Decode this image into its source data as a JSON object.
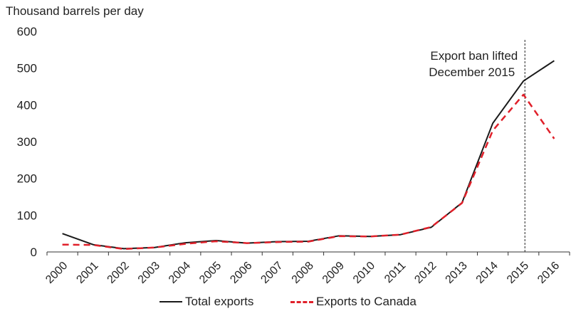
{
  "chart_data": {
    "type": "line",
    "title": "",
    "ylabel": "Thousand barrels per day",
    "xlabel": "",
    "ylim": [
      0,
      600
    ],
    "yticks": [
      0,
      100,
      200,
      300,
      400,
      500,
      600
    ],
    "categories": [
      "2000",
      "2001",
      "2002",
      "2003",
      "2004",
      "2005",
      "2006",
      "2007",
      "2008",
      "2009",
      "2010",
      "2011",
      "2012",
      "2013",
      "2014",
      "2015",
      "2016"
    ],
    "series": [
      {
        "name": "Total exports",
        "color": "#1a1a1a",
        "style": "solid",
        "values": [
          50,
          20,
          9,
          12,
          25,
          31,
          24,
          28,
          29,
          44,
          42,
          47,
          67,
          134,
          350,
          465,
          520
        ]
      },
      {
        "name": "Exports to Canada",
        "color": "#e0202a",
        "style": "dashed",
        "values": [
          20,
          19,
          8,
          12,
          22,
          29,
          24,
          27,
          28,
          43,
          42,
          47,
          68,
          133,
          330,
          428,
          308
        ]
      }
    ],
    "annotations": [
      {
        "text_line1": "Export ban lifted",
        "text_line2": "December 2015",
        "x_category": "2015"
      }
    ],
    "grid": false,
    "legend_position": "bottom"
  }
}
